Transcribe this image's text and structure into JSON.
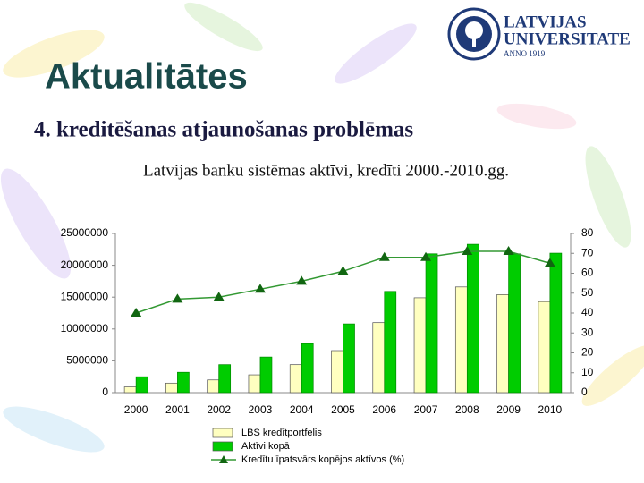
{
  "slide": {
    "title": "Aktualitātes",
    "subtitle": "4. kreditēšanas atjaunošanas problēmas",
    "logo": {
      "line1": "LATVIJAS",
      "line2": "UNIVERSITATE",
      "line3": "ANNO 1919"
    }
  },
  "chart_data": {
    "type": "bar",
    "title": "Latvijas banku sistēmas aktīvi, kredīti 2000.-2010.gg.",
    "categories": [
      "2000",
      "2001",
      "2002",
      "2003",
      "2004",
      "2005",
      "2006",
      "2007",
      "2008",
      "2009",
      "2010"
    ],
    "series": [
      {
        "name": "LBS kredītportfelis",
        "type": "bar",
        "color": "#ffffc0",
        "values": [
          900000,
          1500000,
          2000000,
          2800000,
          4400000,
          6600000,
          11000000,
          14900000,
          16600000,
          15400000,
          14300000
        ]
      },
      {
        "name": "Aktīvi kopā",
        "type": "bar",
        "color": "#00cc00",
        "values": [
          2500000,
          3200000,
          4400000,
          5600000,
          7700000,
          10800000,
          15900000,
          21800000,
          23300000,
          21800000,
          21900000
        ]
      },
      {
        "name": "Kredītu īpatsvārs kopējos aktīvos (%)",
        "type": "line",
        "axis": "y2",
        "color": "#339933",
        "values": [
          40,
          47,
          48,
          52,
          56,
          61,
          68,
          68,
          71,
          71,
          65
        ]
      }
    ],
    "ylim": [
      0,
      25000000
    ],
    "yticks": [
      0,
      5000000,
      10000000,
      15000000,
      20000000,
      25000000
    ],
    "y2lim": [
      0,
      80
    ],
    "y2ticks": [
      0,
      10,
      20,
      30,
      40,
      50,
      60,
      70,
      80
    ],
    "grid": false,
    "legend": "bottom"
  }
}
